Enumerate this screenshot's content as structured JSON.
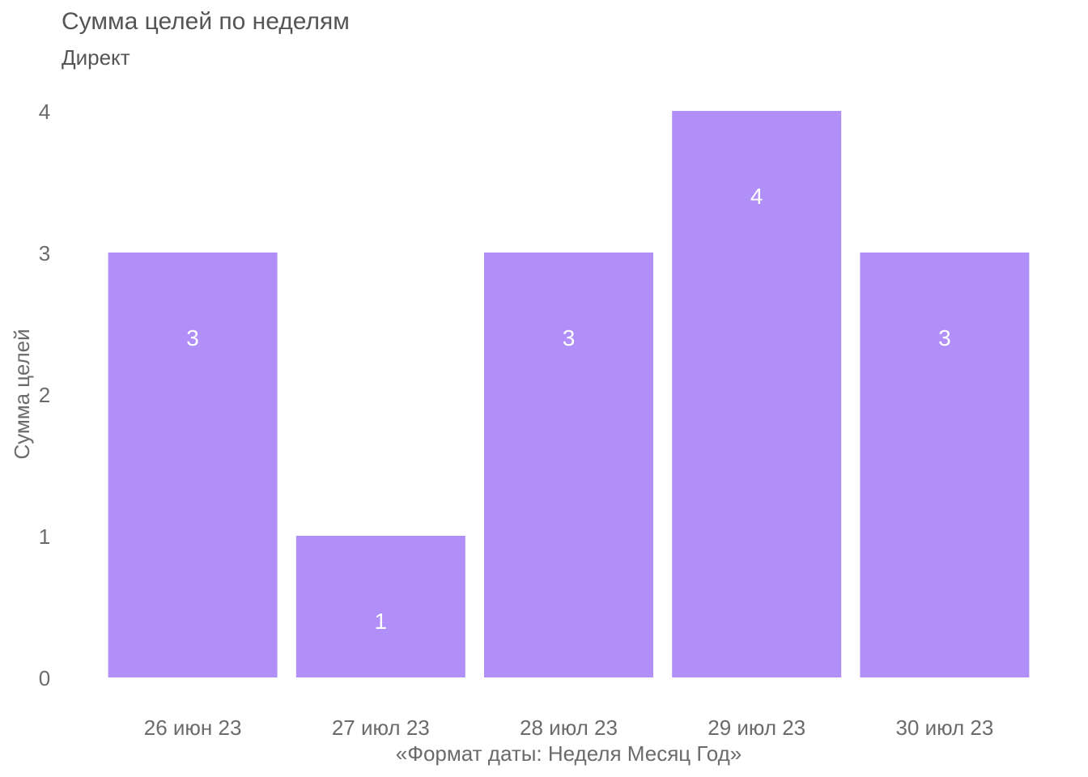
{
  "chart_data": {
    "type": "bar",
    "title": "Сумма целей по неделям",
    "subtitle": "Директ",
    "xlabel": "«Формат даты: Неделя Месяц Год»",
    "ylabel": "Сумма целей",
    "categories": [
      "26 июн 23",
      "27 июл 23",
      "28 июл 23",
      "29 июл 23",
      "30 июл 23"
    ],
    "values": [
      3,
      1,
      3,
      4,
      3
    ],
    "data_labels": [
      "3",
      "1",
      "3",
      "4",
      "3"
    ],
    "yticks": [
      "0",
      "1",
      "2",
      "3",
      "4"
    ],
    "ylim": [
      0,
      4
    ],
    "grid": false,
    "legend": "none",
    "bar_color": "#b08ff9",
    "label_color": "#ffffff"
  }
}
